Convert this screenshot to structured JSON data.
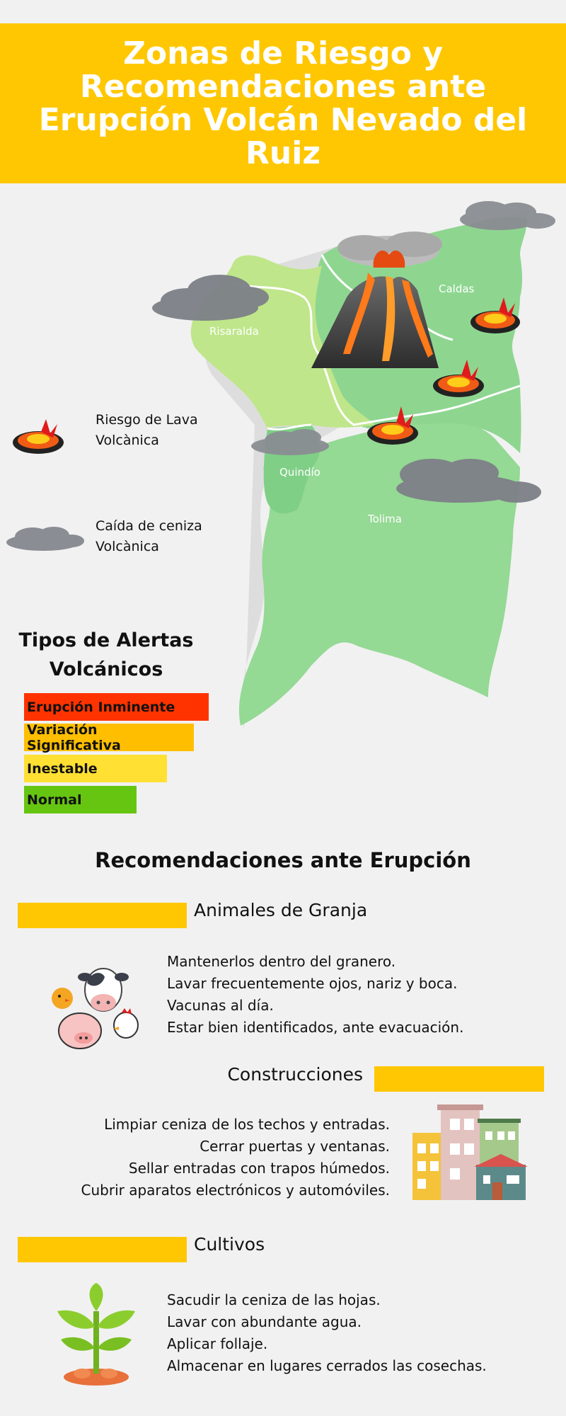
{
  "header": {
    "title": "Zonas de Riesgo y Recomendaciones ante Erupción Volcán Nevado del Ruiz"
  },
  "map": {
    "regions": [
      "Risaralda",
      "Caldas",
      "Quindío",
      "Tolima"
    ]
  },
  "legend": [
    {
      "label": "Riesgo de Lava Volcànica",
      "icon": "lava-icon"
    },
    {
      "label": "Caída de ceniza Volcànica",
      "icon": "ash-cloud-icon"
    }
  ],
  "alerts": {
    "title": "Tipos de Alertas Volcánicos",
    "levels": [
      {
        "label": "Erupción Inminente",
        "color": "#ff3300"
      },
      {
        "label": "Variación Significativa",
        "color": "#ffbf00"
      },
      {
        "label": "Inestable",
        "color": "#ffe033"
      },
      {
        "label": "Normal",
        "color": "#66c511"
      }
    ]
  },
  "recommendations": {
    "title": "Recomendaciones ante Erupción",
    "sections": [
      {
        "title": "Animales de Granja",
        "icon": "farm-animals-icon",
        "items": [
          "Mantenerlos dentro del granero.",
          "Lavar frecuentemente ojos, nariz y boca.",
          "Vacunas al día.",
          "Estar bien identificados, ante evacuación."
        ]
      },
      {
        "title": "Construcciones",
        "icon": "buildings-icon",
        "items": [
          "Limpiar ceniza de los techos y entradas.",
          "Cerrar puertas y ventanas.",
          "Sellar entradas con trapos húmedos.",
          "Cubrir aparatos electrónicos y automóviles."
        ]
      },
      {
        "title": "Cultivos",
        "icon": "plant-icon",
        "items": [
          "Sacudir la ceniza de las hojas.",
          "Lavar con abundante agua.",
          "Aplicar follaje.",
          "Almacenar en lugares cerrados las cosechas."
        ]
      }
    ]
  }
}
